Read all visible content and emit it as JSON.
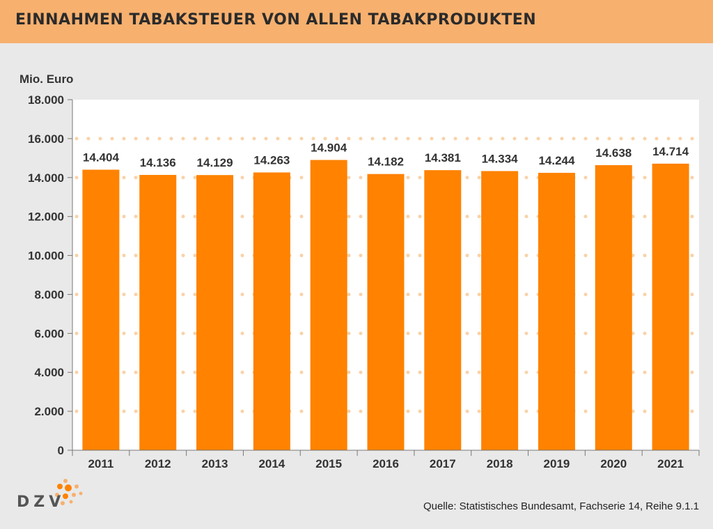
{
  "header": {
    "title": "EINNAHMEN TABAKSTEUER VON ALLEN TABAKPRODUKTEN"
  },
  "unit_label": "Mio. Euro",
  "source": "Quelle: Statistisches Bundesamt, Fachserie 14, Reihe 9.1.1",
  "logo": {
    "text": "DZV",
    "icon": "dzv-dots-logo"
  },
  "colors": {
    "bar": "#ff8200",
    "header": "#f7b06e",
    "background": "#e9e9e9",
    "plot": "#ffffff",
    "grid_dots": "#f9d2a8"
  },
  "chart_data": {
    "type": "bar",
    "title": "EINNAHMEN TABAKSTEUER VON ALLEN TABAKPRODUKTEN",
    "ylabel": "Mio. Euro",
    "xlabel": "",
    "categories": [
      "2011",
      "2012",
      "2013",
      "2014",
      "2015",
      "2016",
      "2017",
      "2018",
      "2019",
      "2020",
      "2021"
    ],
    "values": [
      14404,
      14136,
      14129,
      14263,
      14904,
      14182,
      14381,
      14334,
      14244,
      14638,
      14714
    ],
    "value_labels": [
      "14.404",
      "14.136",
      "14.129",
      "14.263",
      "14.904",
      "14.182",
      "14.381",
      "14.334",
      "14.244",
      "14.638",
      "14.714"
    ],
    "ylim": [
      0,
      18000
    ],
    "yticks": [
      0,
      2000,
      4000,
      6000,
      8000,
      10000,
      12000,
      14000,
      16000,
      18000
    ],
    "ytick_labels": [
      "0",
      "2.000",
      "4.000",
      "6.000",
      "8.000",
      "10.000",
      "12.000",
      "14.000",
      "16.000",
      "18.000"
    ],
    "grid": "dotted",
    "legend": "none"
  }
}
